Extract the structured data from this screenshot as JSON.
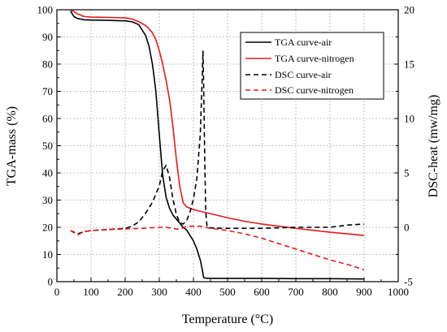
{
  "chart_data": {
    "type": "line",
    "xlabel": "Temperature (°C)",
    "ylabel_left": "TGA-mass (%)",
    "ylabel_right": "DSC-heat (mw/mg)",
    "xlim": [
      0,
      1000
    ],
    "ylim_left": [
      0,
      100
    ],
    "ylim_right": [
      -5,
      20
    ],
    "x_ticks": [
      "0",
      "100",
      "200",
      "300",
      "400",
      "500",
      "600",
      "700",
      "800",
      "900",
      "1000"
    ],
    "y_left_ticks": [
      "0",
      "10",
      "20",
      "30",
      "40",
      "50",
      "60",
      "70",
      "80",
      "90",
      "100"
    ],
    "y_right_ticks": [
      "-5",
      "0",
      "5",
      "10",
      "15",
      "20"
    ],
    "grid": true,
    "legend_position": "top-right",
    "series": [
      {
        "name": "TGA curve-air",
        "axis": "left",
        "color": "#000000",
        "dash": "solid",
        "x": [
          40,
          50,
          60,
          80,
          100,
          150,
          200,
          220,
          240,
          260,
          270,
          280,
          290,
          300,
          310,
          320,
          330,
          340,
          350,
          360,
          370,
          380,
          390,
          400,
          410,
          420,
          425,
          430,
          435,
          450,
          500,
          600,
          700,
          800,
          900
        ],
        "y": [
          99.5,
          97.5,
          96.8,
          96.3,
          96.2,
          96.1,
          95.9,
          95.6,
          94.5,
          90.5,
          86.5,
          80,
          70,
          54,
          39,
          31,
          27,
          24.5,
          23,
          21.5,
          20,
          19,
          17,
          15,
          12,
          8,
          5,
          1.5,
          1.3,
          1.2,
          1.2,
          1.2,
          1.1,
          1.1,
          1.0
        ]
      },
      {
        "name": "TGA curve-nitrogen",
        "axis": "left",
        "color": "#e8191b",
        "dash": "solid",
        "x": [
          40,
          50,
          60,
          80,
          100,
          150,
          200,
          220,
          240,
          260,
          270,
          280,
          290,
          300,
          310,
          320,
          330,
          340,
          350,
          360,
          370,
          380,
          400,
          450,
          500,
          550,
          600,
          650,
          700,
          750,
          800,
          850,
          900
        ],
        "y": [
          100,
          99.3,
          98.5,
          97.5,
          97.3,
          97.2,
          97.0,
          96.6,
          95.6,
          94.2,
          93.0,
          91.5,
          89,
          85,
          80,
          74,
          67,
          57,
          45,
          35,
          29,
          27.5,
          26.5,
          25,
          23.5,
          22.2,
          21.2,
          20.4,
          19.6,
          18.9,
          18.2,
          17.6,
          17.0
        ]
      },
      {
        "name": "DSC curve-air",
        "axis": "right",
        "color": "#000000",
        "dash": "dashed",
        "x": [
          40,
          60,
          80,
          100,
          150,
          200,
          220,
          240,
          260,
          280,
          300,
          310,
          320,
          330,
          340,
          350,
          360,
          370,
          380,
          390,
          400,
          410,
          420,
          425,
          428,
          430,
          433,
          436,
          440,
          450,
          500,
          600,
          700,
          800,
          850,
          900
        ],
        "y": [
          -0.3,
          -0.6,
          -0.4,
          -0.3,
          -0.2,
          -0.1,
          0.1,
          0.5,
          1.3,
          2.3,
          3.8,
          5.2,
          5.7,
          4.6,
          2.6,
          1.2,
          0.4,
          0.3,
          0.6,
          1.4,
          2.6,
          4.5,
          8.5,
          13,
          16.2,
          13,
          6.5,
          1.5,
          0,
          -0.05,
          -0.1,
          -0.1,
          0,
          0,
          0.2,
          0.3
        ]
      },
      {
        "name": "DSC curve-nitrogen",
        "axis": "right",
        "color": "#e8191b",
        "dash": "dashed",
        "x": [
          40,
          60,
          80,
          100,
          150,
          200,
          250,
          300,
          320,
          340,
          360,
          380,
          400,
          420,
          450,
          500,
          550,
          600,
          650,
          700,
          750,
          800,
          850,
          900
        ],
        "y": [
          -0.3,
          -0.7,
          -0.4,
          -0.3,
          -0.2,
          -0.15,
          -0.1,
          0,
          0,
          -0.1,
          -0.2,
          0.1,
          0.1,
          0.1,
          -0.1,
          -0.3,
          -0.6,
          -1.0,
          -1.5,
          -2.0,
          -2.5,
          -3.0,
          -3.4,
          -3.9
        ]
      }
    ]
  }
}
